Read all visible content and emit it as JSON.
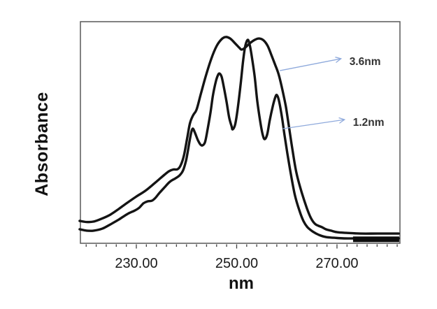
{
  "chart_data": {
    "type": "line",
    "title": "",
    "xlabel": "nm",
    "ylabel": "Absorbance",
    "grid": false,
    "legend": "none (arrow annotations identify curves)",
    "x_axis": {
      "xlim": [
        218.85,
        282.55
      ],
      "tick_start": 220,
      "tick_step": 2,
      "tick_end": 282,
      "major_ticks": [
        230,
        250,
        270
      ],
      "major_tick_labels": [
        "230.00",
        "250.00",
        "270.00"
      ]
    },
    "y_axis": {
      "ylim": [
        0,
        1
      ],
      "ticks": []
    },
    "series": [
      {
        "name": "3.6nm",
        "description": "broad envelope, 3.6 nm spectral bandwidth",
        "points": [
          [
            218.7,
            0.101
          ],
          [
            220.1,
            0.096
          ],
          [
            221.5,
            0.098
          ],
          [
            223.0,
            0.11
          ],
          [
            224.8,
            0.129
          ],
          [
            226.5,
            0.155
          ],
          [
            228.2,
            0.183
          ],
          [
            230.0,
            0.211
          ],
          [
            231.8,
            0.237
          ],
          [
            233.8,
            0.274
          ],
          [
            235.6,
            0.309
          ],
          [
            236.5,
            0.325
          ],
          [
            237.4,
            0.333
          ],
          [
            238.2,
            0.334
          ],
          [
            238.8,
            0.35
          ],
          [
            239.5,
            0.397
          ],
          [
            240.2,
            0.483
          ],
          [
            240.7,
            0.543
          ],
          [
            241.3,
            0.577
          ],
          [
            242.0,
            0.603
          ],
          [
            242.8,
            0.669
          ],
          [
            243.8,
            0.751
          ],
          [
            244.9,
            0.83
          ],
          [
            246.0,
            0.89
          ],
          [
            247.0,
            0.921
          ],
          [
            247.8,
            0.931
          ],
          [
            248.7,
            0.924
          ],
          [
            249.7,
            0.902
          ],
          [
            250.5,
            0.883
          ],
          [
            251.0,
            0.874
          ],
          [
            251.7,
            0.883
          ],
          [
            252.6,
            0.902
          ],
          [
            253.6,
            0.918
          ],
          [
            254.5,
            0.924
          ],
          [
            255.4,
            0.915
          ],
          [
            256.2,
            0.89
          ],
          [
            257.0,
            0.845
          ],
          [
            257.7,
            0.804
          ],
          [
            258.4,
            0.76
          ],
          [
            259.1,
            0.694
          ],
          [
            259.8,
            0.618
          ],
          [
            260.4,
            0.53
          ],
          [
            261.1,
            0.426
          ],
          [
            261.9,
            0.319
          ],
          [
            263.0,
            0.227
          ],
          [
            264.0,
            0.158
          ],
          [
            264.8,
            0.114
          ],
          [
            265.6,
            0.088
          ],
          [
            266.3,
            0.079
          ],
          [
            267.0,
            0.073
          ],
          [
            267.8,
            0.063
          ],
          [
            268.8,
            0.057
          ],
          [
            270.0,
            0.05
          ],
          [
            271.8,
            0.047
          ],
          [
            274.6,
            0.044
          ],
          [
            278.1,
            0.044
          ],
          [
            282.3,
            0.044
          ]
        ]
      },
      {
        "name": "1.2nm",
        "description": "resolved fine structure, 1.2 nm spectral bandwidth",
        "points": [
          [
            218.7,
            0.063
          ],
          [
            220.1,
            0.057
          ],
          [
            221.5,
            0.057
          ],
          [
            223.2,
            0.066
          ],
          [
            224.8,
            0.085
          ],
          [
            226.5,
            0.107
          ],
          [
            228.2,
            0.132
          ],
          [
            229.7,
            0.148
          ],
          [
            230.6,
            0.161
          ],
          [
            231.4,
            0.18
          ],
          [
            232.2,
            0.189
          ],
          [
            233.1,
            0.192
          ],
          [
            233.8,
            0.205
          ],
          [
            234.6,
            0.227
          ],
          [
            235.6,
            0.252
          ],
          [
            236.7,
            0.278
          ],
          [
            237.8,
            0.293
          ],
          [
            238.6,
            0.306
          ],
          [
            239.3,
            0.328
          ],
          [
            239.9,
            0.372
          ],
          [
            240.3,
            0.42
          ],
          [
            240.7,
            0.473
          ],
          [
            241.0,
            0.505
          ],
          [
            241.3,
            0.517
          ],
          [
            241.7,
            0.498
          ],
          [
            242.3,
            0.464
          ],
          [
            242.8,
            0.445
          ],
          [
            243.2,
            0.442
          ],
          [
            243.7,
            0.457
          ],
          [
            244.2,
            0.514
          ],
          [
            244.8,
            0.593
          ],
          [
            245.3,
            0.672
          ],
          [
            245.9,
            0.735
          ],
          [
            246.3,
            0.76
          ],
          [
            246.6,
            0.766
          ],
          [
            247.0,
            0.751
          ],
          [
            247.4,
            0.71
          ],
          [
            248.0,
            0.637
          ],
          [
            248.5,
            0.568
          ],
          [
            249.0,
            0.527
          ],
          [
            249.2,
            0.514
          ],
          [
            249.7,
            0.536
          ],
          [
            250.2,
            0.606
          ],
          [
            250.8,
            0.719
          ],
          [
            251.3,
            0.826
          ],
          [
            251.7,
            0.889
          ],
          [
            252.2,
            0.918
          ],
          [
            252.6,
            0.896
          ],
          [
            253.0,
            0.845
          ],
          [
            253.6,
            0.751
          ],
          [
            254.1,
            0.643
          ],
          [
            254.7,
            0.549
          ],
          [
            255.2,
            0.489
          ],
          [
            255.6,
            0.47
          ],
          [
            256.1,
            0.492
          ],
          [
            256.6,
            0.555
          ],
          [
            257.2,
            0.618
          ],
          [
            257.7,
            0.659
          ],
          [
            258.0,
            0.669
          ],
          [
            258.4,
            0.647
          ],
          [
            259.0,
            0.574
          ],
          [
            259.5,
            0.495
          ],
          [
            260.1,
            0.407
          ],
          [
            260.8,
            0.312
          ],
          [
            261.6,
            0.218
          ],
          [
            262.5,
            0.148
          ],
          [
            263.3,
            0.101
          ],
          [
            264.1,
            0.073
          ],
          [
            265.1,
            0.054
          ],
          [
            266.4,
            0.038
          ],
          [
            267.8,
            0.028
          ],
          [
            269.4,
            0.025
          ],
          [
            271.4,
            0.022
          ],
          [
            273.9,
            0.022
          ],
          [
            278.1,
            0.022
          ],
          [
            282.3,
            0.022
          ]
        ]
      }
    ],
    "annotations": [
      {
        "label": "3.6nm",
        "arrow_from": [
          258.6,
          0.779
        ],
        "arrow_to": [
          270.8,
          0.833
        ]
      },
      {
        "label": "1.2nm",
        "arrow_from": [
          259.2,
          0.517
        ],
        "arrow_to": [
          271.5,
          0.558
        ]
      }
    ],
    "baseline_bar": {
      "from": 273.2,
      "to": 282.4,
      "y": 0.018,
      "thickness_px": 8
    },
    "colors": {
      "curve": "#141414",
      "frame": "#595959",
      "tick": "#404040",
      "tick_label": "#1a1a1a",
      "arrow": "#8faadc",
      "annotation_text": "#333333",
      "background": "#ffffff"
    }
  }
}
